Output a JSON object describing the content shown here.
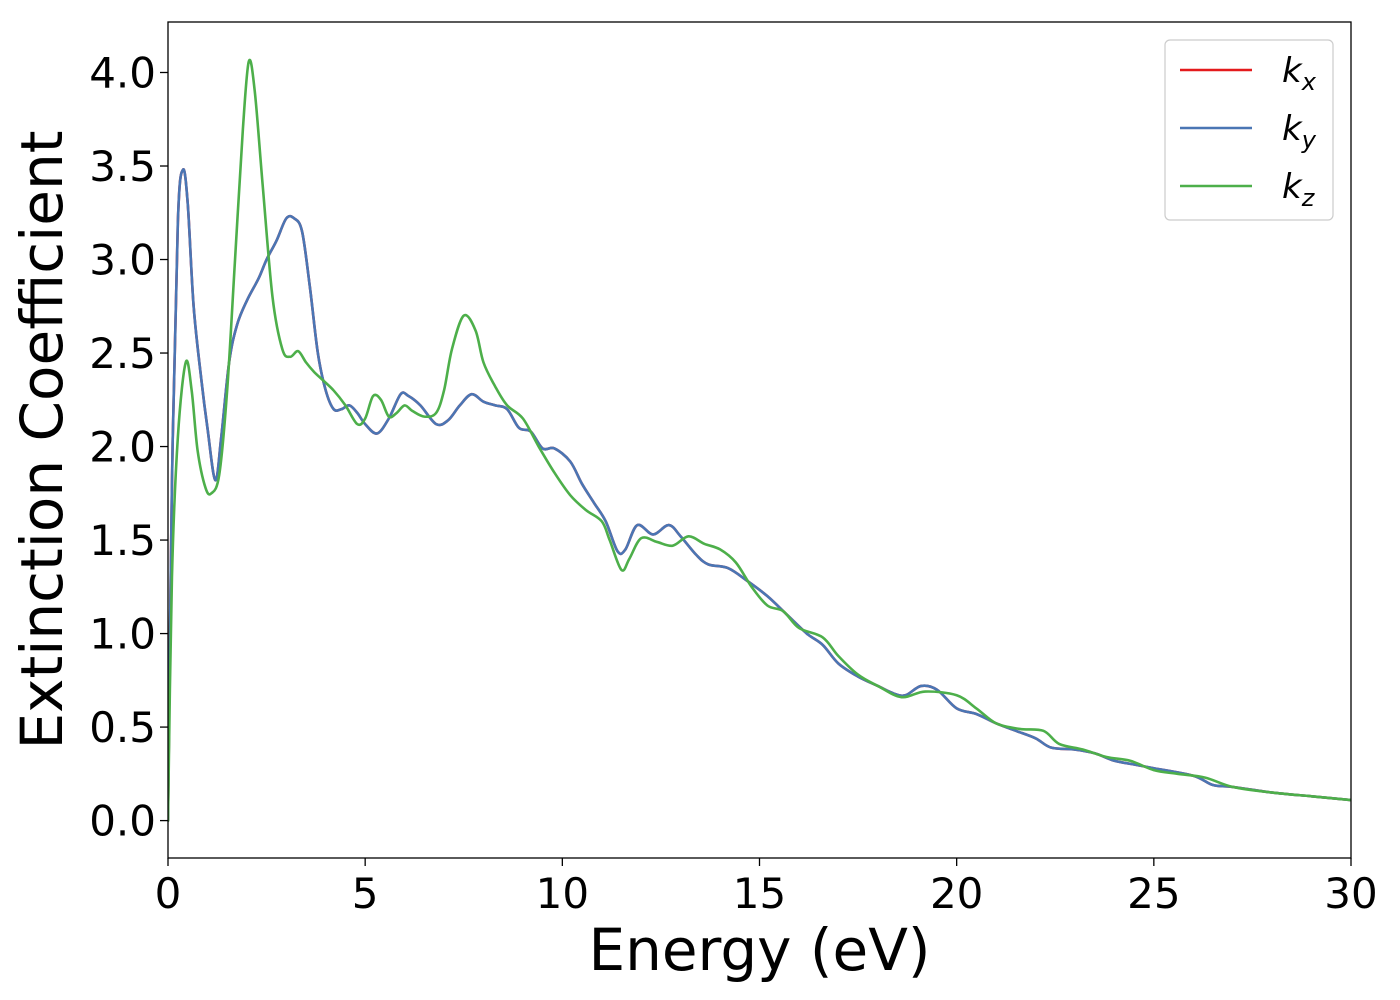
{
  "chart_data": {
    "type": "line",
    "xlabel": "Energy (eV)",
    "ylabel": "Extinction Coefficient",
    "xlim": [
      0,
      30
    ],
    "ylim": [
      -0.2,
      4.27
    ],
    "xticks": [
      0,
      5,
      10,
      15,
      20,
      25,
      30
    ],
    "xtick_labels": [
      "0",
      "5",
      "10",
      "15",
      "20",
      "25",
      "30"
    ],
    "yticks": [
      0.0,
      0.5,
      1.0,
      1.5,
      2.0,
      2.5,
      3.0,
      3.5,
      4.0
    ],
    "ytick_labels": [
      "0.0",
      "0.5",
      "1.0",
      "1.5",
      "2.0",
      "2.5",
      "3.0",
      "3.5",
      "4.0"
    ],
    "grid": false,
    "legend_position": "top-right",
    "series": [
      {
        "name": "k",
        "subscript": "x",
        "color": "#e41a1c",
        "points": [
          [
            0,
            0
          ],
          [
            0.1,
            1.8
          ],
          [
            0.25,
            3.2
          ],
          [
            0.38,
            3.48
          ],
          [
            0.5,
            3.3
          ],
          [
            0.65,
            2.75
          ],
          [
            0.85,
            2.35
          ],
          [
            1.0,
            2.1
          ],
          [
            1.2,
            1.82
          ],
          [
            1.35,
            2.05
          ],
          [
            1.55,
            2.45
          ],
          [
            1.75,
            2.65
          ],
          [
            2.0,
            2.78
          ],
          [
            2.3,
            2.9
          ],
          [
            2.5,
            3.0
          ],
          [
            2.75,
            3.1
          ],
          [
            3.0,
            3.22
          ],
          [
            3.2,
            3.22
          ],
          [
            3.4,
            3.15
          ],
          [
            3.6,
            2.85
          ],
          [
            3.8,
            2.5
          ],
          [
            4.0,
            2.3
          ],
          [
            4.2,
            2.2
          ],
          [
            4.4,
            2.2
          ],
          [
            4.6,
            2.22
          ],
          [
            4.8,
            2.18
          ],
          [
            5.0,
            2.12
          ],
          [
            5.3,
            2.07
          ],
          [
            5.6,
            2.15
          ],
          [
            5.9,
            2.28
          ],
          [
            6.1,
            2.27
          ],
          [
            6.4,
            2.22
          ],
          [
            6.8,
            2.12
          ],
          [
            7.1,
            2.14
          ],
          [
            7.4,
            2.22
          ],
          [
            7.7,
            2.28
          ],
          [
            8.0,
            2.24
          ],
          [
            8.3,
            2.22
          ],
          [
            8.6,
            2.2
          ],
          [
            8.9,
            2.1
          ],
          [
            9.2,
            2.08
          ],
          [
            9.5,
            1.99
          ],
          [
            9.8,
            1.99
          ],
          [
            10.2,
            1.92
          ],
          [
            10.5,
            1.8
          ],
          [
            10.8,
            1.7
          ],
          [
            11.1,
            1.6
          ],
          [
            11.4,
            1.44
          ],
          [
            11.6,
            1.45
          ],
          [
            11.9,
            1.58
          ],
          [
            12.3,
            1.53
          ],
          [
            12.7,
            1.58
          ],
          [
            13.0,
            1.52
          ],
          [
            13.4,
            1.42
          ],
          [
            13.7,
            1.37
          ],
          [
            14.2,
            1.35
          ],
          [
            14.7,
            1.28
          ],
          [
            15.2,
            1.2
          ],
          [
            15.7,
            1.1
          ],
          [
            16.2,
            1.0
          ],
          [
            16.6,
            0.94
          ],
          [
            17.0,
            0.84
          ],
          [
            17.5,
            0.77
          ],
          [
            18.0,
            0.72
          ],
          [
            18.4,
            0.68
          ],
          [
            18.7,
            0.67
          ],
          [
            19.1,
            0.72
          ],
          [
            19.5,
            0.7
          ],
          [
            20.0,
            0.6
          ],
          [
            20.5,
            0.57
          ],
          [
            21.0,
            0.52
          ],
          [
            21.5,
            0.48
          ],
          [
            22.0,
            0.44
          ],
          [
            22.4,
            0.39
          ],
          [
            23.0,
            0.38
          ],
          [
            23.5,
            0.36
          ],
          [
            24.0,
            0.32
          ],
          [
            24.5,
            0.3
          ],
          [
            25.0,
            0.28
          ],
          [
            26.0,
            0.24
          ],
          [
            26.5,
            0.19
          ],
          [
            27.0,
            0.18
          ],
          [
            28.0,
            0.15
          ],
          [
            29.0,
            0.13
          ],
          [
            30.0,
            0.11
          ]
        ]
      },
      {
        "name": "k",
        "subscript": "y",
        "color": "#4a76b4",
        "points": [
          [
            0,
            0
          ],
          [
            0.1,
            1.8
          ],
          [
            0.25,
            3.2
          ],
          [
            0.38,
            3.48
          ],
          [
            0.5,
            3.3
          ],
          [
            0.65,
            2.75
          ],
          [
            0.85,
            2.35
          ],
          [
            1.0,
            2.1
          ],
          [
            1.2,
            1.82
          ],
          [
            1.35,
            2.05
          ],
          [
            1.55,
            2.45
          ],
          [
            1.75,
            2.65
          ],
          [
            2.0,
            2.78
          ],
          [
            2.3,
            2.9
          ],
          [
            2.5,
            3.0
          ],
          [
            2.75,
            3.1
          ],
          [
            3.0,
            3.22
          ],
          [
            3.2,
            3.22
          ],
          [
            3.4,
            3.15
          ],
          [
            3.6,
            2.85
          ],
          [
            3.8,
            2.5
          ],
          [
            4.0,
            2.3
          ],
          [
            4.2,
            2.2
          ],
          [
            4.4,
            2.2
          ],
          [
            4.6,
            2.22
          ],
          [
            4.8,
            2.18
          ],
          [
            5.0,
            2.12
          ],
          [
            5.3,
            2.07
          ],
          [
            5.6,
            2.15
          ],
          [
            5.9,
            2.28
          ],
          [
            6.1,
            2.27
          ],
          [
            6.4,
            2.22
          ],
          [
            6.8,
            2.12
          ],
          [
            7.1,
            2.14
          ],
          [
            7.4,
            2.22
          ],
          [
            7.7,
            2.28
          ],
          [
            8.0,
            2.24
          ],
          [
            8.3,
            2.22
          ],
          [
            8.6,
            2.2
          ],
          [
            8.9,
            2.1
          ],
          [
            9.2,
            2.08
          ],
          [
            9.5,
            1.99
          ],
          [
            9.8,
            1.99
          ],
          [
            10.2,
            1.92
          ],
          [
            10.5,
            1.8
          ],
          [
            10.8,
            1.7
          ],
          [
            11.1,
            1.6
          ],
          [
            11.4,
            1.44
          ],
          [
            11.6,
            1.45
          ],
          [
            11.9,
            1.58
          ],
          [
            12.3,
            1.53
          ],
          [
            12.7,
            1.58
          ],
          [
            13.0,
            1.52
          ],
          [
            13.4,
            1.42
          ],
          [
            13.7,
            1.37
          ],
          [
            14.2,
            1.35
          ],
          [
            14.7,
            1.28
          ],
          [
            15.2,
            1.2
          ],
          [
            15.7,
            1.1
          ],
          [
            16.2,
            1.0
          ],
          [
            16.6,
            0.94
          ],
          [
            17.0,
            0.84
          ],
          [
            17.5,
            0.77
          ],
          [
            18.0,
            0.72
          ],
          [
            18.4,
            0.68
          ],
          [
            18.7,
            0.67
          ],
          [
            19.1,
            0.72
          ],
          [
            19.5,
            0.7
          ],
          [
            20.0,
            0.6
          ],
          [
            20.5,
            0.57
          ],
          [
            21.0,
            0.52
          ],
          [
            21.5,
            0.48
          ],
          [
            22.0,
            0.44
          ],
          [
            22.4,
            0.39
          ],
          [
            23.0,
            0.38
          ],
          [
            23.5,
            0.36
          ],
          [
            24.0,
            0.32
          ],
          [
            24.5,
            0.3
          ],
          [
            25.0,
            0.28
          ],
          [
            26.0,
            0.24
          ],
          [
            26.5,
            0.19
          ],
          [
            27.0,
            0.18
          ],
          [
            28.0,
            0.15
          ],
          [
            29.0,
            0.13
          ],
          [
            30.0,
            0.11
          ]
        ]
      },
      {
        "name": "k",
        "subscript": "z",
        "color": "#4daf4a",
        "points": [
          [
            0,
            0
          ],
          [
            0.1,
            1.3
          ],
          [
            0.25,
            2.05
          ],
          [
            0.45,
            2.45
          ],
          [
            0.6,
            2.3
          ],
          [
            0.75,
            1.98
          ],
          [
            0.95,
            1.78
          ],
          [
            1.1,
            1.75
          ],
          [
            1.3,
            1.85
          ],
          [
            1.5,
            2.3
          ],
          [
            1.7,
            3.0
          ],
          [
            1.9,
            3.7
          ],
          [
            2.05,
            4.06
          ],
          [
            2.2,
            3.9
          ],
          [
            2.4,
            3.4
          ],
          [
            2.65,
            2.8
          ],
          [
            2.9,
            2.52
          ],
          [
            3.1,
            2.48
          ],
          [
            3.3,
            2.51
          ],
          [
            3.5,
            2.45
          ],
          [
            3.7,
            2.4
          ],
          [
            3.9,
            2.36
          ],
          [
            4.2,
            2.3
          ],
          [
            4.5,
            2.22
          ],
          [
            4.8,
            2.12
          ],
          [
            5.0,
            2.15
          ],
          [
            5.2,
            2.27
          ],
          [
            5.4,
            2.25
          ],
          [
            5.6,
            2.16
          ],
          [
            5.8,
            2.18
          ],
          [
            6.0,
            2.22
          ],
          [
            6.2,
            2.19
          ],
          [
            6.5,
            2.16
          ],
          [
            6.8,
            2.18
          ],
          [
            7.0,
            2.3
          ],
          [
            7.2,
            2.52
          ],
          [
            7.5,
            2.7
          ],
          [
            7.8,
            2.62
          ],
          [
            8.0,
            2.45
          ],
          [
            8.3,
            2.32
          ],
          [
            8.6,
            2.22
          ],
          [
            9.0,
            2.15
          ],
          [
            9.4,
            2.0
          ],
          [
            9.8,
            1.86
          ],
          [
            10.2,
            1.74
          ],
          [
            10.6,
            1.66
          ],
          [
            11.0,
            1.6
          ],
          [
            11.2,
            1.5
          ],
          [
            11.5,
            1.34
          ],
          [
            11.7,
            1.4
          ],
          [
            12.0,
            1.51
          ],
          [
            12.4,
            1.49
          ],
          [
            12.8,
            1.47
          ],
          [
            13.2,
            1.52
          ],
          [
            13.6,
            1.48
          ],
          [
            14.0,
            1.45
          ],
          [
            14.4,
            1.38
          ],
          [
            14.8,
            1.25
          ],
          [
            15.2,
            1.15
          ],
          [
            15.6,
            1.12
          ],
          [
            16.0,
            1.03
          ],
          [
            16.6,
            0.98
          ],
          [
            17.0,
            0.88
          ],
          [
            17.5,
            0.78
          ],
          [
            18.0,
            0.72
          ],
          [
            18.6,
            0.66
          ],
          [
            19.2,
            0.69
          ],
          [
            20.0,
            0.67
          ],
          [
            20.5,
            0.6
          ],
          [
            21.0,
            0.52
          ],
          [
            21.6,
            0.49
          ],
          [
            22.2,
            0.48
          ],
          [
            22.6,
            0.41
          ],
          [
            23.2,
            0.38
          ],
          [
            23.8,
            0.34
          ],
          [
            24.4,
            0.32
          ],
          [
            25.0,
            0.27
          ],
          [
            25.6,
            0.25
          ],
          [
            26.3,
            0.23
          ],
          [
            27.0,
            0.18
          ],
          [
            28.0,
            0.15
          ],
          [
            29.0,
            0.13
          ],
          [
            30.0,
            0.11
          ]
        ]
      }
    ]
  }
}
